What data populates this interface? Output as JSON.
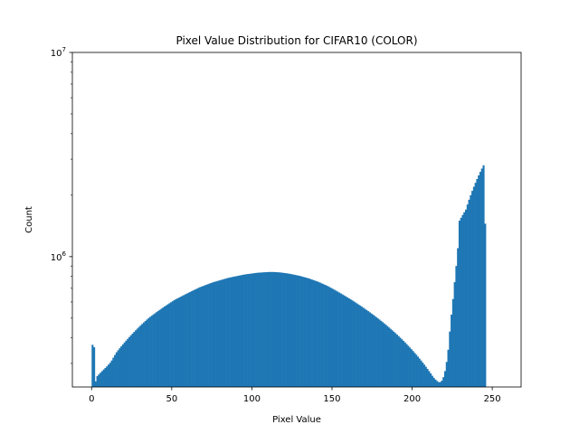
{
  "chart_data": {
    "type": "bar",
    "title": "Pixel Value Distribution for CIFAR10 (COLOR)",
    "xlabel": "Pixel Value",
    "ylabel": "Count",
    "xlim": [
      -12,
      268
    ],
    "ylim": [
      230000,
      10000000
    ],
    "y_scale": "log",
    "grid": false,
    "color": "#1f77b4",
    "x_ticks": [
      {
        "value": 0,
        "label": "0"
      },
      {
        "value": 50,
        "label": "50"
      },
      {
        "value": 100,
        "label": "100"
      },
      {
        "value": 150,
        "label": "150"
      },
      {
        "value": 200,
        "label": "200"
      },
      {
        "value": 250,
        "label": "250"
      }
    ],
    "y_ticks": [
      {
        "value": 1000000,
        "base": "10",
        "exp": "6"
      },
      {
        "value": 10000000,
        "base": "10",
        "exp": "7"
      }
    ],
    "bins": {
      "start": 0,
      "width": 1
    },
    "values": [
      370000,
      360000,
      245000,
      260000,
      265000,
      270000,
      275000,
      280000,
      285000,
      290000,
      296000,
      302000,
      310000,
      320000,
      330000,
      340000,
      348000,
      356000,
      364000,
      372000,
      380000,
      388000,
      396000,
      404000,
      412000,
      420000,
      428000,
      436000,
      444000,
      452000,
      460000,
      468000,
      476000,
      484000,
      492000,
      500000,
      507000,
      514000,
      521000,
      528000,
      535000,
      542000,
      549000,
      556000,
      563000,
      570000,
      577000,
      584000,
      591000,
      598000,
      605000,
      612000,
      618000,
      624000,
      630000,
      636000,
      642000,
      648000,
      654000,
      660000,
      666000,
      672000,
      678000,
      684000,
      690000,
      696000,
      702000,
      708000,
      713000,
      718000,
      723000,
      728000,
      733000,
      738000,
      743000,
      748000,
      752000,
      756000,
      760000,
      764000,
      768000,
      772000,
      776000,
      780000,
      784000,
      788000,
      791000,
      794000,
      797000,
      800000,
      803000,
      806000,
      809000,
      812000,
      815000,
      818000,
      820000,
      822000,
      824000,
      826000,
      828000,
      830000,
      832000,
      834000,
      835000,
      836000,
      837000,
      838000,
      839000,
      840000,
      841000,
      841000,
      841000,
      841000,
      840000,
      839000,
      838000,
      837000,
      835000,
      833000,
      831000,
      829000,
      827000,
      824000,
      821000,
      818000,
      815000,
      812000,
      809000,
      806000,
      802000,
      798000,
      794000,
      790000,
      786000,
      782000,
      777000,
      772000,
      767000,
      762000,
      757000,
      752000,
      746000,
      740000,
      734000,
      728000,
      722000,
      716000,
      709000,
      702000,
      695000,
      688000,
      681000,
      674000,
      667000,
      660000,
      653000,
      646000,
      639000,
      632000,
      625000,
      618000,
      611000,
      604000,
      597000,
      590000,
      583000,
      576000,
      569000,
      562000,
      555000,
      548000,
      541000,
      534000,
      527000,
      520000,
      513000,
      506000,
      499000,
      492000,
      485000,
      478000,
      471000,
      464000,
      457000,
      450000,
      443000,
      436000,
      429000,
      422000,
      415000,
      408000,
      401000,
      394000,
      387000,
      380000,
      373000,
      366000,
      359000,
      352000,
      345000,
      338000,
      331000,
      324000,
      317000,
      310000,
      303000,
      296000,
      289000,
      282000,
      275000,
      268000,
      261000,
      255000,
      250000,
      246000,
      243000,
      243000,
      247000,
      257000,
      275000,
      305000,
      350000,
      430000,
      520000,
      620000,
      750000,
      900000,
      1100000,
      1500000,
      1550000,
      1600000,
      1650000,
      1700000,
      1800000,
      1900000,
      2000000,
      2100000,
      2200000,
      2300000,
      2400000,
      2500000,
      2600000,
      2700000,
      2800000,
      1450000
    ]
  }
}
